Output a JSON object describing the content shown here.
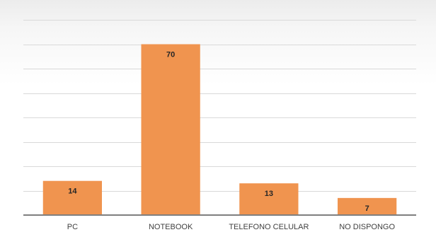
{
  "chart_data": {
    "type": "bar",
    "title": "",
    "xlabel": "",
    "ylabel": "",
    "categories": [
      "PC",
      "NOTEBOOK",
      "TELEFONO CELULAR",
      "NO DISPONGO"
    ],
    "values": [
      14,
      70,
      13,
      7
    ],
    "ylim": [
      0,
      80
    ],
    "grid": true,
    "legend": "none",
    "bar_color": "#F0944F",
    "data_labels": true
  }
}
